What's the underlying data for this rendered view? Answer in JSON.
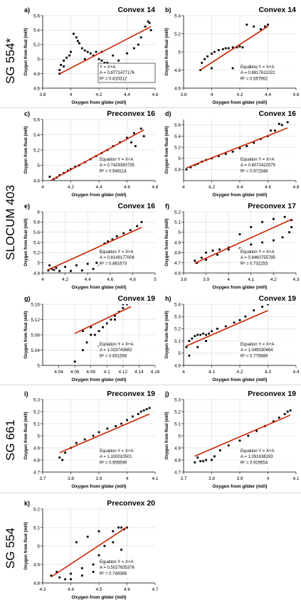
{
  "groups": [
    {
      "label": "SG 554*"
    },
    {
      "label": "SLOCUM 403"
    },
    {
      "label": "SG 661"
    },
    {
      "label": "SG 554"
    }
  ],
  "colors": {
    "fit_line": "#cc2200",
    "points": "#000000",
    "text": "#000000",
    "grid": "#cfcfcf"
  },
  "chart_data": [
    {
      "type": "scatter",
      "panel": "a)",
      "title": "Convex 14",
      "xlabel": "Oxygen from glider (ml/l)",
      "ylabel": "Oxygen from float (ml/l)",
      "xlim": [
        3.8,
        4.6
      ],
      "ylim": [
        4.6,
        5.6
      ],
      "xticks": [
        "3.8",
        "4",
        "4.2",
        "4.4",
        "4.6"
      ],
      "yticks": [
        "4.6",
        "4.8",
        "5",
        "5.2",
        "5.4",
        "5.6"
      ],
      "fit": {
        "a": 0.8771477176
      },
      "stats": [
        "Y = X+A",
        "A = 0.8771477176",
        "R² = 0.810312"
      ],
      "x": [
        3.92,
        3.92,
        3.93,
        3.95,
        3.97,
        3.99,
        4.0,
        4.02,
        4.04,
        4.06,
        4.08,
        4.1,
        4.12,
        4.14,
        4.16,
        4.18,
        4.2,
        4.22,
        4.24,
        4.26,
        4.28,
        4.3,
        4.34,
        4.4,
        4.45,
        4.5,
        4.53,
        4.55,
        4.56,
        4.57,
        4.22,
        4.05,
        3.95,
        4.1,
        4.3,
        4.48
      ],
      "y": [
        4.8,
        4.85,
        4.92,
        4.98,
        5.02,
        5.05,
        5.1,
        5.35,
        5.3,
        5.22,
        5.15,
        5.12,
        5.1,
        5.08,
        5.05,
        5.1,
        5.0,
        4.98,
        4.95,
        4.95,
        4.92,
        4.92,
        4.98,
        5.08,
        5.15,
        5.3,
        5.45,
        5.52,
        5.5,
        5.4,
        5.1,
        5.25,
        4.9,
        5.0,
        5.05,
        5.2
      ]
    },
    {
      "type": "scatter",
      "panel": "b)",
      "title": "Convex 14",
      "xlabel": "Oxygen from glider (ml/l)",
      "ylabel": "Oxygen from float (ml/l)",
      "xlim": [
        3.8,
        4.6
      ],
      "ylim": [
        4.6,
        5.4
      ],
      "xticks": [
        "3.8",
        "4",
        "4.2",
        "4.4",
        "4.6"
      ],
      "yticks": [
        "4.6",
        "4.8",
        "5",
        "5.2",
        "5.4"
      ],
      "fit": {
        "a": 0.8817611022
      },
      "stats": [
        "Equation Y = X+A",
        "A = 0.8817611022",
        "R² = 0.557962"
      ],
      "x": [
        3.92,
        3.93,
        3.95,
        3.97,
        4.0,
        4.02,
        4.05,
        4.08,
        4.1,
        4.12,
        4.15,
        4.18,
        4.2,
        4.22,
        4.25,
        4.3,
        4.35,
        4.38,
        4.4,
        4.27,
        4.32,
        4.0,
        4.15
      ],
      "y": [
        4.8,
        4.88,
        4.92,
        4.95,
        4.98,
        5.0,
        5.02,
        5.03,
        5.04,
        5.04,
        5.05,
        5.05,
        5.06,
        5.05,
        5.3,
        5.28,
        5.25,
        5.28,
        5.3,
        4.85,
        4.82,
        4.82,
        4.82
      ]
    },
    {
      "type": "scatter",
      "panel": "c)",
      "title": "Preconvex 16",
      "xlabel": "Oxygen from glider (ml/l)",
      "ylabel": "Oxygen from float (ml/l)",
      "xlim": [
        4,
        4.8
      ],
      "ylim": [
        4.8,
        5.6
      ],
      "xticks": [
        "4",
        "4.2",
        "4.4",
        "4.6",
        "4.8"
      ],
      "yticks": [
        "4.8",
        "5",
        "5.2",
        "5.4",
        "5.6"
      ],
      "fit": {
        "a": 0.7429393735
      },
      "stats": [
        "Equation Y = X+A",
        "A = 0.7429393735",
        "R² = 0.946114"
      ],
      "x": [
        4.08,
        4.1,
        4.12,
        4.15,
        4.18,
        4.2,
        4.23,
        4.26,
        4.3,
        4.34,
        4.38,
        4.42,
        4.46,
        4.5,
        4.55,
        4.6,
        4.65,
        4.7,
        4.72,
        4.63,
        4.66,
        4.05
      ],
      "y": [
        4.82,
        4.84,
        4.87,
        4.9,
        4.93,
        4.95,
        4.98,
        5.0,
        5.04,
        5.08,
        5.12,
        5.16,
        5.2,
        5.25,
        5.3,
        5.36,
        5.42,
        5.48,
        5.38,
        5.3,
        5.25,
        4.85
      ]
    },
    {
      "type": "scatter",
      "panel": "d)",
      "title": "Convex 16",
      "xlabel": "Oxygen from glider (ml/l)",
      "ylabel": "Oxygen from float (ml/l)",
      "xlim": [
        4,
        4.8
      ],
      "ylim": [
        4.6,
        5.7
      ],
      "xticks": [
        "4",
        "4.2",
        "4.4",
        "4.6",
        "4.8"
      ],
      "yticks": [
        "4.8",
        "5",
        "5.2",
        "5.4",
        "5.6"
      ],
      "fit": {
        "a": 0.8072422079
      },
      "stats": [
        "Equation Y = X+A",
        "A = 0.8072422079",
        "R² = 0.972348"
      ],
      "x": [
        4.02,
        4.05,
        4.08,
        4.1,
        4.13,
        4.16,
        4.2,
        4.25,
        4.3,
        4.35,
        4.4,
        4.45,
        4.5,
        4.55,
        4.6,
        4.65,
        4.7,
        4.74,
        4.68,
        4.62
      ],
      "y": [
        4.8,
        4.84,
        4.88,
        4.9,
        4.94,
        4.97,
        5.0,
        5.04,
        5.08,
        5.12,
        5.18,
        5.22,
        5.28,
        5.35,
        5.4,
        5.5,
        5.6,
        5.65,
        5.62,
        5.5
      ]
    },
    {
      "type": "scatter",
      "panel": "e)",
      "title": "Convex 16",
      "xlabel": "Oxygen from glider (ml/l)",
      "ylabel": "Oxygen from float (ml/l)",
      "xlim": [
        4,
        5
      ],
      "ylim": [
        4.8,
        6
      ],
      "xticks": [
        "4",
        "4.2",
        "4.4",
        "4.6",
        "4.8",
        "5"
      ],
      "yticks": [
        "4.8",
        "5",
        "5.2",
        "5.4",
        "5.6",
        "5.8",
        "6"
      ],
      "fit": {
        "a": 0.8149177008
      },
      "stats": [
        "Equation Y = X+A",
        "A = 0.8149177008",
        "R² = 0.861673"
      ],
      "x": [
        4.05,
        4.08,
        4.12,
        4.2,
        4.3,
        4.4,
        4.48,
        4.52,
        4.55,
        4.58,
        4.62,
        4.66,
        4.72,
        4.78,
        4.84,
        4.88,
        4.06,
        4.1,
        4.15,
        4.25,
        4.35,
        4.45,
        4.5
      ],
      "y": [
        4.85,
        4.88,
        4.9,
        4.92,
        4.95,
        4.98,
        5.0,
        5.2,
        5.38,
        5.42,
        5.46,
        5.52,
        5.58,
        5.64,
        5.72,
        5.8,
        4.95,
        4.86,
        4.84,
        4.84,
        4.85,
        4.88,
        4.95
      ]
    },
    {
      "type": "scatter",
      "panel": "f)",
      "title": "Preconvex 17",
      "xlabel": "Oxygen from glider (ml/l)",
      "ylabel": "Oxygen from float (ml/l)",
      "xlim": [
        3.8,
        4.3
      ],
      "ylim": [
        4.6,
        5.2
      ],
      "xticks": [
        "3.8",
        "3.9",
        "4",
        "4.1",
        "4.2",
        "4.3"
      ],
      "yticks": [
        "4.6",
        "4.7",
        "4.8",
        "4.9",
        "5",
        "5.1",
        "5.2"
      ],
      "fit": {
        "a": 0.8460755795
      },
      "stats": [
        "Equation Y = X+A",
        "A = 0.8460755795",
        "R² = 0.732253"
      ],
      "x": [
        3.85,
        3.88,
        3.9,
        3.93,
        3.96,
        4.0,
        4.05,
        4.1,
        4.15,
        4.2,
        4.24,
        4.27,
        4.28,
        3.86,
        3.9,
        3.95,
        4.0,
        4.05,
        4.1,
        4.15,
        4.2,
        4.25,
        4.28
      ],
      "y": [
        4.72,
        4.75,
        4.8,
        4.82,
        4.83,
        4.83,
        4.84,
        4.88,
        4.9,
        4.92,
        4.95,
        5.0,
        5.05,
        4.7,
        4.73,
        4.78,
        4.85,
        4.98,
        5.05,
        5.1,
        5.13,
        5.15,
        5.12
      ]
    },
    {
      "type": "scatter",
      "panel": "g)",
      "title": "Convex 19",
      "xlabel": "Oxygen from glider (ml/l)",
      "ylabel": "Oxygen from float (ml/l)",
      "xlim": [
        4.02,
        4.16
      ],
      "ylim": [
        5,
        5.16
      ],
      "xticks": [
        "4.04",
        "4.06",
        "4.08",
        "4.1",
        "4.12",
        "4.14",
        "4.16"
      ],
      "yticks": [
        "5",
        "5.04",
        "5.08",
        "5.12",
        "5.16"
      ],
      "fit": {
        "a": 1.023743682
      },
      "stats": [
        "Equation Y = X+A",
        "A = 1.023743682",
        "R² = 0.651556"
      ],
      "x": [
        4.06,
        4.07,
        4.075,
        4.08,
        4.085,
        4.09,
        4.095,
        4.1,
        4.105,
        4.11,
        4.115,
        4.12,
        4.125,
        4.13,
        4.09,
        4.1,
        4.11,
        4.12,
        4.08,
        4.07
      ],
      "y": [
        5.01,
        5.04,
        5.06,
        5.08,
        5.08,
        5.09,
        5.1,
        5.11,
        5.12,
        5.13,
        5.14,
        5.15,
        5.16,
        5.17,
        5.05,
        5.06,
        5.12,
        5.16,
        5.1,
        5.09
      ]
    },
    {
      "type": "scatter",
      "panel": "h)",
      "title": "Convex 19",
      "xlabel": "Oxygen from glider (ml/l)",
      "ylabel": "Oxygen from float (ml/l)",
      "xlim": [
        4,
        4.4
      ],
      "ylim": [
        4.9,
        5.4
      ],
      "xticks": [
        "4",
        "4.1",
        "4.2",
        "4.3",
        "4.4"
      ],
      "yticks": [
        "4.9",
        "5",
        "5.1",
        "5.2",
        "5.3",
        "5.4"
      ],
      "fit": {
        "a": 1.049330464
      },
      "stats": [
        "Equation Y = X+A",
        "A = 1.049330464",
        "R² = 0.775989"
      ],
      "x": [
        4.01,
        4.02,
        4.03,
        4.04,
        4.05,
        4.06,
        4.07,
        4.08,
        4.09,
        4.1,
        4.12,
        4.15,
        4.18,
        4.2,
        4.22,
        4.25,
        4.28,
        4.3,
        4.02,
        4.05,
        4.08
      ],
      "y": [
        5.05,
        5.1,
        5.12,
        5.14,
        5.15,
        5.15,
        5.16,
        5.15,
        5.16,
        5.18,
        5.2,
        5.22,
        5.25,
        5.27,
        5.3,
        5.35,
        5.38,
        5.4,
        4.98,
        5.05,
        5.1
      ]
    },
    {
      "type": "scatter",
      "panel": "i)",
      "title": "Preconvex 19",
      "xlabel": "Oxygen from glider (ml/l)",
      "ylabel": "Oxygen from float (ml/l)",
      "xlim": [
        3.7,
        4.1
      ],
      "ylim": [
        4.7,
        5.3
      ],
      "xticks": [
        "3.7",
        "3.8",
        "3.9",
        "4",
        "4.1"
      ],
      "yticks": [
        "4.7",
        "4.8",
        "4.9",
        "5",
        "5.1",
        "5.2",
        "5.3"
      ],
      "fit": {
        "a": 1.100010501
      },
      "stats": [
        "Equation Y = X+A",
        "A = 1.100010501",
        "R² = 0.955599"
      ],
      "x": [
        3.76,
        3.77,
        3.78,
        3.8,
        3.82,
        3.85,
        3.88,
        3.9,
        3.93,
        3.96,
        3.98,
        4.0,
        4.02,
        4.04,
        4.05,
        4.06,
        4.07,
        4.08
      ],
      "y": [
        4.82,
        4.8,
        4.86,
        4.9,
        4.94,
        4.97,
        5.0,
        5.03,
        5.06,
        5.08,
        5.1,
        5.13,
        5.16,
        5.18,
        5.2,
        5.21,
        5.22,
        5.23
      ]
    },
    {
      "type": "scatter",
      "panel": "j)",
      "title": "Preconvex 19",
      "xlabel": "Oxygen from glider (ml/l)",
      "ylabel": "Oxygen from float (ml/l)",
      "xlim": [
        3.7,
        4.1
      ],
      "ylim": [
        4.7,
        5.3
      ],
      "xticks": [
        "3.7",
        "3.8",
        "3.9",
        "4",
        "4.1"
      ],
      "yticks": [
        "4.7",
        "4.8",
        "4.9",
        "5",
        "5.1",
        "5.2",
        "5.3"
      ],
      "fit": {
        "a": 1.091638193
      },
      "stats": [
        "Equation Y = X+A",
        "A = 1.091638193",
        "R² = 0.929554"
      ],
      "x": [
        3.74,
        3.76,
        3.78,
        3.8,
        3.81,
        3.83,
        3.86,
        3.9,
        3.93,
        3.96,
        3.99,
        4.02,
        4.04,
        4.06,
        4.07,
        4.08,
        3.75,
        3.77
      ],
      "y": [
        4.78,
        4.79,
        4.8,
        4.8,
        4.83,
        4.88,
        4.92,
        4.96,
        5.0,
        5.04,
        5.08,
        5.12,
        5.15,
        5.18,
        5.2,
        5.21,
        4.82,
        4.79
      ]
    },
    {
      "type": "scatter",
      "panel": "k)",
      "title": "Preconvex 20",
      "xlabel": "Oxygen from glider (ml/l)",
      "ylabel": "Oxygen from float (ml/l)",
      "xlim": [
        4.3,
        4.7
      ],
      "ylim": [
        4.8,
        5.2
      ],
      "xticks": [
        "4.3",
        "4.4",
        "4.5",
        "4.6",
        "4.7"
      ],
      "yticks": [
        "4.8",
        "4.9",
        "5",
        "5.1",
        "5.2"
      ],
      "fit": {
        "a": 0.5027635376
      },
      "stats": [
        "Equation Y = X+A",
        "A = 0.5027635376",
        "R² = 0.746388"
      ],
      "x": [
        4.33,
        4.35,
        4.38,
        4.4,
        4.44,
        4.48,
        4.5,
        4.52,
        4.55,
        4.57,
        4.58,
        4.59,
        4.6,
        4.5,
        4.46,
        4.42,
        4.55,
        4.58,
        4.52,
        4.48,
        4.44,
        4.4,
        4.36
      ],
      "y": [
        4.84,
        4.86,
        4.82,
        4.85,
        4.88,
        4.9,
        4.95,
        5.0,
        5.08,
        5.1,
        5.1,
        5.09,
        5.1,
        5.08,
        5.05,
        5.02,
        5.02,
        4.98,
        4.9,
        4.86,
        4.84,
        4.82,
        4.83
      ]
    }
  ]
}
